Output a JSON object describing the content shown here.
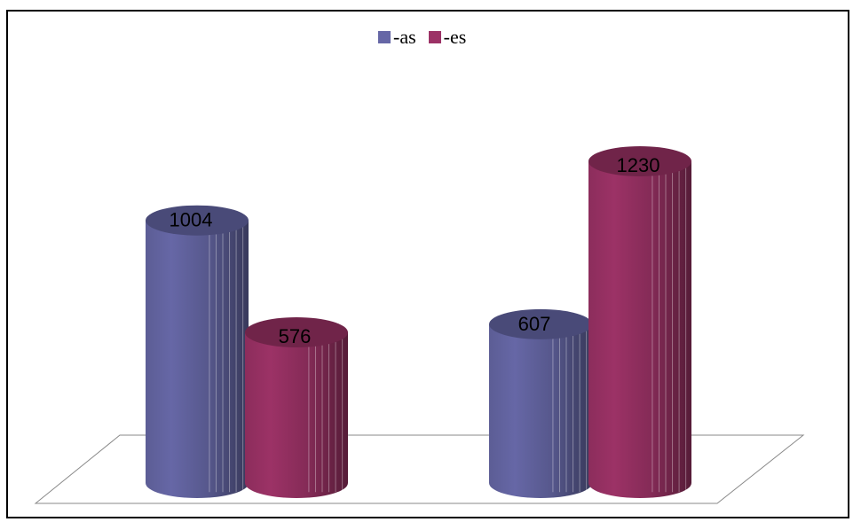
{
  "chart_data": {
    "type": "bar",
    "style": "3d-cylinder",
    "categories": [
      "",
      ""
    ],
    "series": [
      {
        "name": "-as",
        "values": [
          1004,
          607
        ],
        "color": "#6667a6"
      },
      {
        "name": "-es",
        "values": [
          576,
          1230
        ],
        "color": "#9c3266"
      }
    ],
    "title": "",
    "xlabel": "",
    "ylabel": "",
    "ylim": [
      0,
      1400
    ],
    "grid": false,
    "legend": "top-center",
    "data_labels": true
  }
}
